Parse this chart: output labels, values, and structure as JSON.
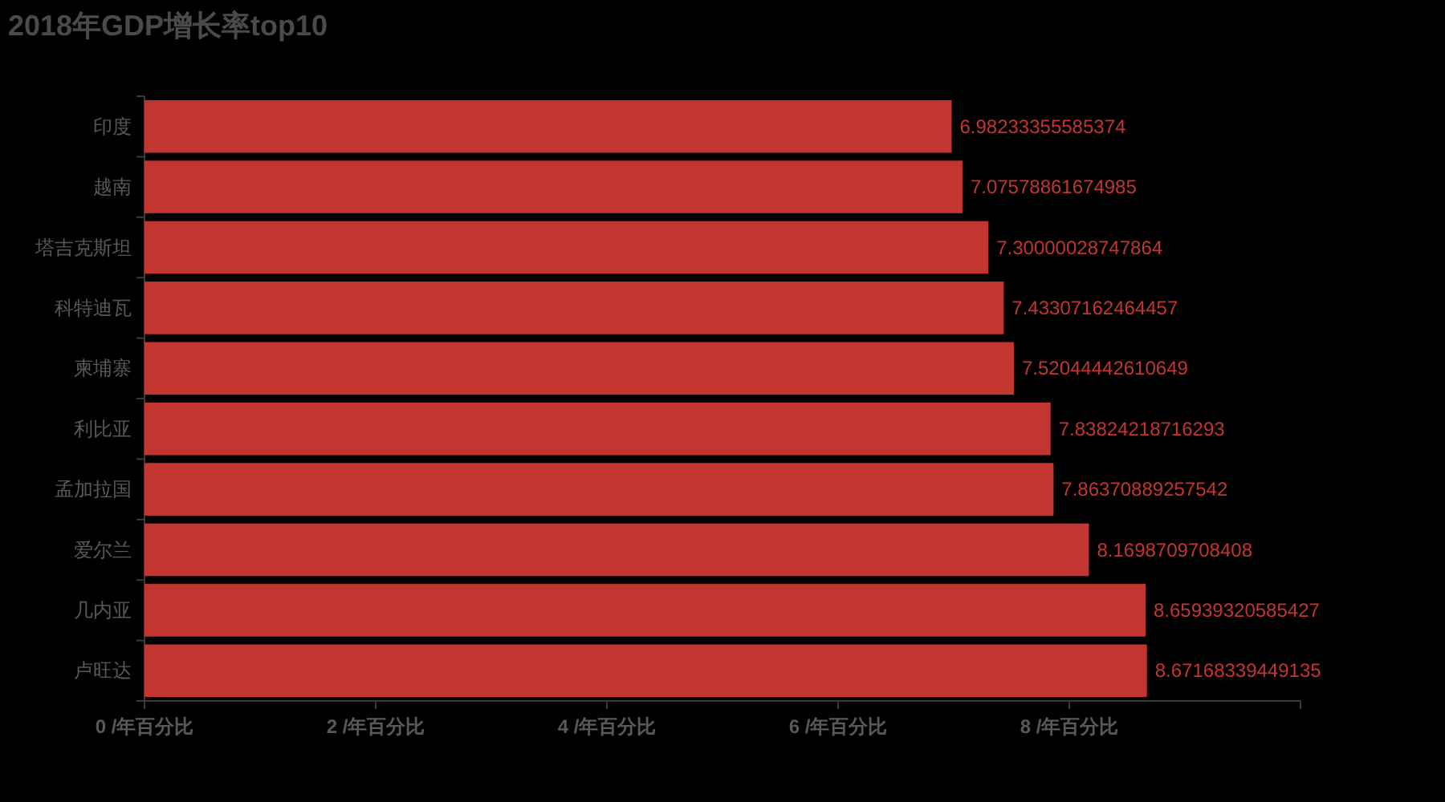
{
  "chart_data": {
    "type": "bar",
    "orientation": "horizontal",
    "title": "2018年GDP增长率top10",
    "categories": [
      "印度",
      "越南",
      "塔吉克斯坦",
      "科特迪瓦",
      "柬埔寨",
      "利比亚",
      "孟加拉国",
      "爱尔兰",
      "几内亚",
      "卢旺达"
    ],
    "values": [
      6.98233355585374,
      7.07578861674985,
      7.30000028747864,
      7.43307162464457,
      7.52044442610649,
      7.83824218716293,
      7.86370889257542,
      8.1698709708408,
      8.65939320585427,
      8.67168339449135
    ],
    "color": "#c23531",
    "data_labels": true,
    "xlim": [
      0,
      10
    ],
    "xticks": [
      {
        "value": 0,
        "label": "0 /年百分比"
      },
      {
        "value": 2,
        "label": "2 /年百分比"
      },
      {
        "value": 4,
        "label": "4 /年百分比"
      },
      {
        "value": 6,
        "label": "6 /年百分比"
      },
      {
        "value": 8,
        "label": "8 /年百分比"
      },
      {
        "value": 10,
        "label": null
      }
    ]
  }
}
